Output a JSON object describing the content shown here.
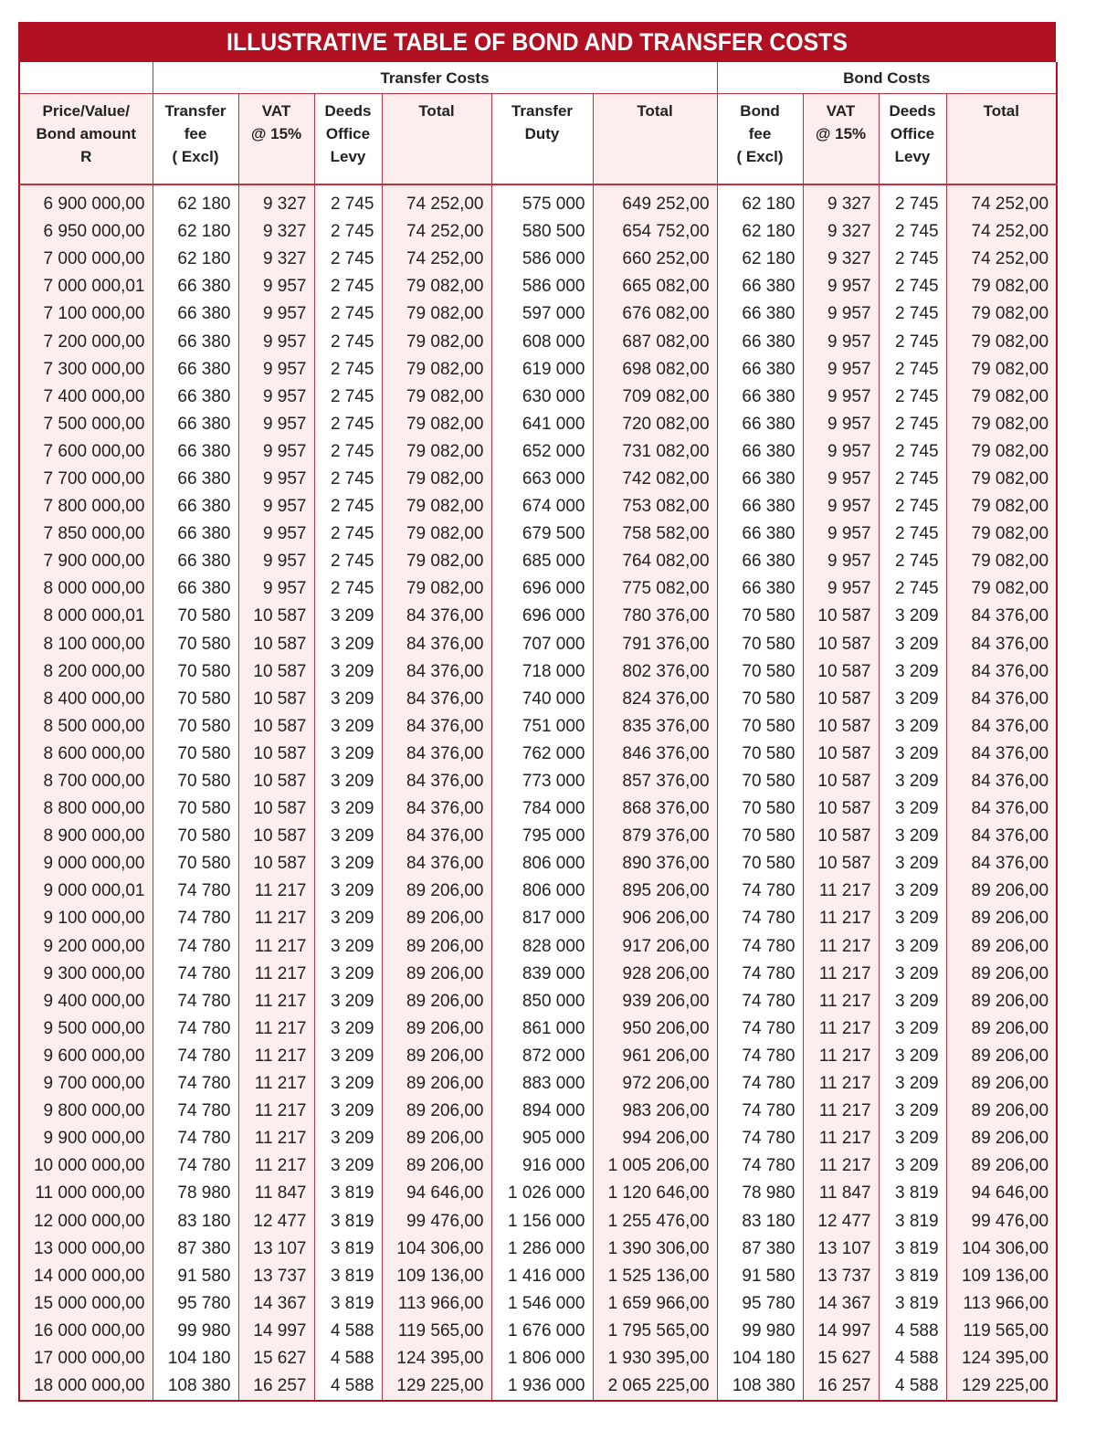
{
  "title": "ILLUSTRATIVE TABLE OF BOND AND TRANSFER COSTS",
  "groups": {
    "transfer": "Transfer Costs",
    "bond": "Bond Costs"
  },
  "headers": [
    "Price/Value/\nBond amount\nR",
    "Transfer\nfee\n( Excl)",
    "VAT\n@ 15%",
    "Deeds\nOffice\nLevy",
    "Total",
    "Transfer\nDuty",
    "Total",
    "Bond\nfee\n( Excl)",
    "VAT\n@ 15%",
    "Deeds\nOffice\nLevy",
    "Total"
  ],
  "accent_color": "#b01021",
  "rows": [
    [
      "6 900 000,00",
      "62 180",
      "9 327",
      "2 745",
      "74 252,00",
      "575 000",
      "649 252,00",
      "62 180",
      "9 327",
      "2 745",
      "74 252,00"
    ],
    [
      "6 950 000,00",
      "62 180",
      "9 327",
      "2 745",
      "74 252,00",
      "580 500",
      "654 752,00",
      "62 180",
      "9 327",
      "2 745",
      "74 252,00"
    ],
    [
      "7 000 000,00",
      "62 180",
      "9 327",
      "2 745",
      "74 252,00",
      "586 000",
      "660 252,00",
      "62 180",
      "9 327",
      "2 745",
      "74 252,00"
    ],
    [
      "7 000 000,01",
      "66 380",
      "9 957",
      "2 745",
      "79 082,00",
      "586 000",
      "665 082,00",
      "66 380",
      "9 957",
      "2 745",
      "79 082,00"
    ],
    [
      "7 100 000,00",
      "66 380",
      "9 957",
      "2 745",
      "79 082,00",
      "597 000",
      "676 082,00",
      "66 380",
      "9 957",
      "2 745",
      "79 082,00"
    ],
    [
      "7 200 000,00",
      "66 380",
      "9 957",
      "2 745",
      "79 082,00",
      "608 000",
      "687 082,00",
      "66 380",
      "9 957",
      "2 745",
      "79 082,00"
    ],
    [
      "7 300 000,00",
      "66 380",
      "9 957",
      "2 745",
      "79 082,00",
      "619 000",
      "698 082,00",
      "66 380",
      "9 957",
      "2 745",
      "79 082,00"
    ],
    [
      "7 400 000,00",
      "66 380",
      "9 957",
      "2 745",
      "79 082,00",
      "630 000",
      "709 082,00",
      "66 380",
      "9 957",
      "2 745",
      "79 082,00"
    ],
    [
      "7 500 000,00",
      "66 380",
      "9 957",
      "2 745",
      "79 082,00",
      "641 000",
      "720 082,00",
      "66 380",
      "9 957",
      "2 745",
      "79 082,00"
    ],
    [
      "7 600 000,00",
      "66 380",
      "9 957",
      "2 745",
      "79 082,00",
      "652 000",
      "731 082,00",
      "66 380",
      "9 957",
      "2 745",
      "79 082,00"
    ],
    [
      "7 700 000,00",
      "66 380",
      "9 957",
      "2 745",
      "79 082,00",
      "663 000",
      "742 082,00",
      "66 380",
      "9 957",
      "2 745",
      "79 082,00"
    ],
    [
      "7 800 000,00",
      "66 380",
      "9 957",
      "2 745",
      "79 082,00",
      "674 000",
      "753 082,00",
      "66 380",
      "9 957",
      "2 745",
      "79 082,00"
    ],
    [
      "7 850 000,00",
      "66 380",
      "9 957",
      "2 745",
      "79 082,00",
      "679 500",
      "758 582,00",
      "66 380",
      "9 957",
      "2 745",
      "79 082,00"
    ],
    [
      "7 900 000,00",
      "66 380",
      "9 957",
      "2 745",
      "79 082,00",
      "685 000",
      "764 082,00",
      "66 380",
      "9 957",
      "2 745",
      "79 082,00"
    ],
    [
      "8 000 000,00",
      "66 380",
      "9 957",
      "2 745",
      "79 082,00",
      "696 000",
      "775 082,00",
      "66 380",
      "9 957",
      "2 745",
      "79 082,00"
    ],
    [
      "8 000 000,01",
      "70 580",
      "10 587",
      "3 209",
      "84 376,00",
      "696 000",
      "780 376,00",
      "70 580",
      "10 587",
      "3 209",
      "84 376,00"
    ],
    [
      "8 100 000,00",
      "70 580",
      "10 587",
      "3 209",
      "84 376,00",
      "707 000",
      "791 376,00",
      "70 580",
      "10 587",
      "3 209",
      "84 376,00"
    ],
    [
      "8 200 000,00",
      "70 580",
      "10 587",
      "3 209",
      "84 376,00",
      "718 000",
      "802 376,00",
      "70 580",
      "10 587",
      "3 209",
      "84 376,00"
    ],
    [
      "8 400 000,00",
      "70 580",
      "10 587",
      "3 209",
      "84 376,00",
      "740 000",
      "824 376,00",
      "70 580",
      "10 587",
      "3 209",
      "84 376,00"
    ],
    [
      "8 500 000,00",
      "70 580",
      "10 587",
      "3 209",
      "84 376,00",
      "751 000",
      "835 376,00",
      "70 580",
      "10 587",
      "3 209",
      "84 376,00"
    ],
    [
      "8 600 000,00",
      "70 580",
      "10 587",
      "3 209",
      "84 376,00",
      "762 000",
      "846 376,00",
      "70 580",
      "10 587",
      "3 209",
      "84 376,00"
    ],
    [
      "8 700 000,00",
      "70 580",
      "10 587",
      "3 209",
      "84 376,00",
      "773 000",
      "857 376,00",
      "70 580",
      "10 587",
      "3 209",
      "84 376,00"
    ],
    [
      "8 800 000,00",
      "70 580",
      "10 587",
      "3 209",
      "84 376,00",
      "784 000",
      "868 376,00",
      "70 580",
      "10 587",
      "3 209",
      "84 376,00"
    ],
    [
      "8 900 000,00",
      "70 580",
      "10 587",
      "3 209",
      "84 376,00",
      "795 000",
      "879 376,00",
      "70 580",
      "10 587",
      "3 209",
      "84 376,00"
    ],
    [
      "9 000 000,00",
      "70 580",
      "10 587",
      "3 209",
      "84 376,00",
      "806 000",
      "890 376,00",
      "70 580",
      "10 587",
      "3 209",
      "84 376,00"
    ],
    [
      "9 000 000,01",
      "74 780",
      "11 217",
      "3 209",
      "89 206,00",
      "806 000",
      "895 206,00",
      "74 780",
      "11 217",
      "3 209",
      "89 206,00"
    ],
    [
      "9 100 000,00",
      "74 780",
      "11 217",
      "3 209",
      "89 206,00",
      "817 000",
      "906 206,00",
      "74 780",
      "11 217",
      "3 209",
      "89 206,00"
    ],
    [
      "9 200 000,00",
      "74 780",
      "11 217",
      "3 209",
      "89 206,00",
      "828 000",
      "917 206,00",
      "74 780",
      "11 217",
      "3 209",
      "89 206,00"
    ],
    [
      "9 300 000,00",
      "74 780",
      "11 217",
      "3 209",
      "89 206,00",
      "839 000",
      "928 206,00",
      "74 780",
      "11 217",
      "3 209",
      "89 206,00"
    ],
    [
      "9 400 000,00",
      "74 780",
      "11 217",
      "3 209",
      "89 206,00",
      "850 000",
      "939 206,00",
      "74 780",
      "11 217",
      "3 209",
      "89 206,00"
    ],
    [
      "9 500 000,00",
      "74 780",
      "11 217",
      "3 209",
      "89 206,00",
      "861 000",
      "950 206,00",
      "74 780",
      "11 217",
      "3 209",
      "89 206,00"
    ],
    [
      "9 600 000,00",
      "74 780",
      "11 217",
      "3 209",
      "89 206,00",
      "872 000",
      "961 206,00",
      "74 780",
      "11 217",
      "3 209",
      "89 206,00"
    ],
    [
      "9 700 000,00",
      "74 780",
      "11 217",
      "3 209",
      "89 206,00",
      "883 000",
      "972 206,00",
      "74 780",
      "11 217",
      "3 209",
      "89 206,00"
    ],
    [
      "9 800 000,00",
      "74 780",
      "11 217",
      "3 209",
      "89 206,00",
      "894 000",
      "983 206,00",
      "74 780",
      "11 217",
      "3 209",
      "89 206,00"
    ],
    [
      "9 900 000,00",
      "74 780",
      "11 217",
      "3 209",
      "89 206,00",
      "905 000",
      "994 206,00",
      "74 780",
      "11 217",
      "3 209",
      "89 206,00"
    ],
    [
      "10 000 000,00",
      "74 780",
      "11 217",
      "3 209",
      "89 206,00",
      "916 000",
      "1 005 206,00",
      "74 780",
      "11 217",
      "3 209",
      "89 206,00"
    ],
    [
      "11 000 000,00",
      "78 980",
      "11 847",
      "3 819",
      "94 646,00",
      "1 026 000",
      "1 120 646,00",
      "78 980",
      "11 847",
      "3 819",
      "94 646,00"
    ],
    [
      "12 000 000,00",
      "83 180",
      "12 477",
      "3 819",
      "99 476,00",
      "1 156 000",
      "1 255 476,00",
      "83 180",
      "12 477",
      "3 819",
      "99 476,00"
    ],
    [
      "13 000 000,00",
      "87 380",
      "13 107",
      "3 819",
      "104 306,00",
      "1 286 000",
      "1 390 306,00",
      "87 380",
      "13 107",
      "3 819",
      "104 306,00"
    ],
    [
      "14 000 000,00",
      "91 580",
      "13 737",
      "3 819",
      "109 136,00",
      "1 416 000",
      "1 525 136,00",
      "91 580",
      "13 737",
      "3 819",
      "109 136,00"
    ],
    [
      "15 000 000,00",
      "95 780",
      "14 367",
      "3 819",
      "113 966,00",
      "1 546 000",
      "1 659 966,00",
      "95 780",
      "14 367",
      "3 819",
      "113 966,00"
    ],
    [
      "16 000 000,00",
      "99 980",
      "14 997",
      "4 588",
      "119 565,00",
      "1 676 000",
      "1 795 565,00",
      "99 980",
      "14 997",
      "4 588",
      "119 565,00"
    ],
    [
      "17 000 000,00",
      "104 180",
      "15 627",
      "4 588",
      "124 395,00",
      "1 806 000",
      "1 930 395,00",
      "104 180",
      "15 627",
      "4 588",
      "124 395,00"
    ],
    [
      "18 000 000,00",
      "108 380",
      "16 257",
      "4 588",
      "129 225,00",
      "1 936 000",
      "2 065 225,00",
      "108 380",
      "16 257",
      "4 588",
      "129 225,00"
    ]
  ]
}
